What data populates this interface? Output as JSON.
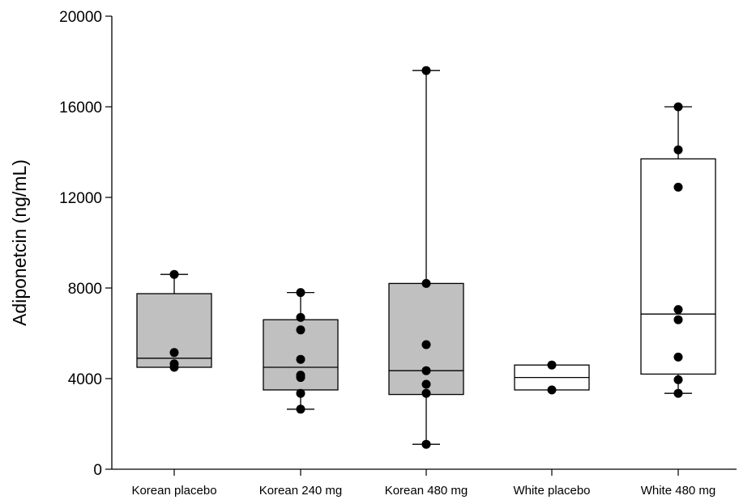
{
  "chart_data": {
    "type": "box",
    "title": "",
    "xlabel": "",
    "ylabel": "Adiponetcin (ng/mL)",
    "ylim": [
      0,
      20000
    ],
    "yticks": [
      0,
      4000,
      8000,
      12000,
      16000,
      20000
    ],
    "grid": false,
    "colors": {
      "filled_box": "#c0c0c0",
      "open_box": "#ffffff",
      "line": "#000000",
      "point": "#000000"
    },
    "categories": [
      "Korean placebo",
      "Korean 240 mg",
      "Korean 480 mg",
      "White placebo",
      "White 480 mg"
    ],
    "series": [
      {
        "category": "Korean placebo",
        "fill": "#c0c0c0",
        "whisker_low": 4500,
        "q1": 4500,
        "median": 4900,
        "q3": 7750,
        "whisker_high": 8600,
        "points": [
          8600,
          5150,
          4650,
          4500
        ]
      },
      {
        "category": "Korean 240 mg",
        "fill": "#c0c0c0",
        "whisker_low": 2650,
        "q1": 3500,
        "median": 4500,
        "q3": 6600,
        "whisker_high": 7800,
        "points": [
          7800,
          6700,
          6150,
          4850,
          4150,
          4050,
          3350,
          2650
        ]
      },
      {
        "category": "Korean 480 mg",
        "fill": "#c0c0c0",
        "whisker_low": 1100,
        "q1": 3300,
        "median": 4350,
        "q3": 8200,
        "whisker_high": 17600,
        "points": [
          17600,
          8200,
          5500,
          4350,
          3750,
          3350,
          1100
        ]
      },
      {
        "category": "White placebo",
        "fill": "#ffffff",
        "whisker_low": 3500,
        "q1": 3500,
        "median": 4050,
        "q3": 4600,
        "whisker_high": 4600,
        "points": [
          4600,
          3500
        ]
      },
      {
        "category": "White 480 mg",
        "fill": "#ffffff",
        "whisker_low": 3350,
        "q1": 4200,
        "median": 6850,
        "q3": 13700,
        "whisker_high": 16000,
        "points": [
          16000,
          14100,
          12450,
          7050,
          6600,
          4950,
          3950,
          3350
        ]
      }
    ]
  }
}
